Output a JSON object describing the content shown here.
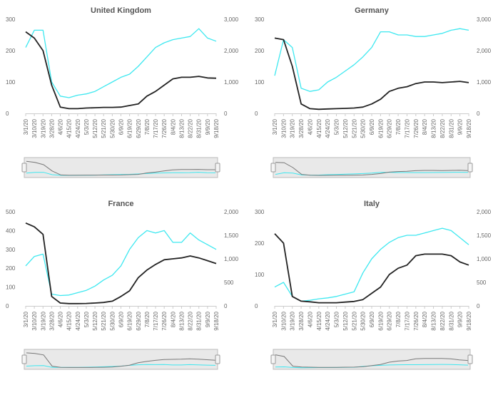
{
  "colors": {
    "cyan": "#3ee8f0",
    "black": "#222222",
    "navigator_bg": "#e9e9e9",
    "navigator_line": "#777777",
    "axis": "#cccccc",
    "text": "#666666"
  },
  "chart_data": [
    {
      "type": "line",
      "title": "United Kingdom",
      "x": [
        "3/1/20",
        "3/10/20",
        "3/19/20",
        "3/28/20",
        "4/6/20",
        "4/15/20",
        "4/24/20",
        "5/3/20",
        "5/12/20",
        "5/21/20",
        "5/30/20",
        "6/9/20",
        "6/19/20",
        "6/29/20",
        "7/8/20",
        "7/17/20",
        "7/26/20",
        "8/4/20",
        "8/13/20",
        "8/22/20",
        "8/31/20",
        "9/9/20",
        "9/18/20"
      ],
      "y_left_ticks": [
        "300",
        "200",
        "100",
        "0"
      ],
      "y_right_ticks": [
        "3,000",
        "2,000",
        "1,000",
        "0"
      ],
      "ylim_left": [
        0,
        300
      ],
      "ylim_right": [
        0,
        3000
      ],
      "grid": false,
      "series": [
        {
          "axis": "right",
          "color": "cyan",
          "values": [
            2100,
            2650,
            2650,
            1000,
            550,
            500,
            580,
            620,
            700,
            850,
            1000,
            1150,
            1250,
            1500,
            1800,
            2100,
            2250,
            2350,
            2400,
            2450,
            2700,
            2400,
            2300
          ]
        },
        {
          "axis": "left",
          "color": "black",
          "values": [
            260,
            240,
            200,
            90,
            20,
            15,
            15,
            17,
            18,
            19,
            19,
            20,
            25,
            30,
            55,
            70,
            90,
            110,
            115,
            115,
            118,
            113,
            112
          ]
        }
      ]
    },
    {
      "type": "line",
      "title": "Germany",
      "x": [
        "3/1/20",
        "3/10/20",
        "3/19/20",
        "3/28/20",
        "4/6/20",
        "4/15/20",
        "4/24/20",
        "5/3/20",
        "5/12/20",
        "5/21/20",
        "5/30/20",
        "6/9/20",
        "6/19/20",
        "6/29/20",
        "7/8/20",
        "7/17/20",
        "7/26/20",
        "8/4/20",
        "8/13/20",
        "8/22/20",
        "8/31/20",
        "9/9/20",
        "9/18/20"
      ],
      "y_left_ticks": [
        "300",
        "200",
        "100",
        "0"
      ],
      "y_right_ticks": [
        "3,000",
        "2,000",
        "1,000",
        "0"
      ],
      "ylim_left": [
        0,
        300
      ],
      "ylim_right": [
        0,
        3000
      ],
      "grid": false,
      "series": [
        {
          "axis": "right",
          "color": "cyan",
          "values": [
            1200,
            2350,
            2100,
            800,
            700,
            750,
            1000,
            1150,
            1350,
            1550,
            1800,
            2100,
            2600,
            2600,
            2500,
            2500,
            2450,
            2450,
            2500,
            2550,
            2650,
            2700,
            2650
          ]
        },
        {
          "axis": "left",
          "color": "black",
          "values": [
            240,
            235,
            150,
            30,
            15,
            13,
            14,
            15,
            16,
            17,
            20,
            30,
            45,
            70,
            80,
            85,
            95,
            100,
            100,
            98,
            100,
            102,
            98
          ]
        }
      ]
    },
    {
      "type": "line",
      "title": "France",
      "x": [
        "3/1/20",
        "3/10/20",
        "3/19/20",
        "3/28/20",
        "4/6/20",
        "4/15/20",
        "4/24/20",
        "5/3/20",
        "5/12/20",
        "5/21/20",
        "5/30/20",
        "6/9/20",
        "6/19/20",
        "6/29/20",
        "7/8/20",
        "7/17/20",
        "7/26/20",
        "8/4/20",
        "8/13/20",
        "8/22/20",
        "8/31/20",
        "9/9/20",
        "9/18/20"
      ],
      "y_left_ticks": [
        "500",
        "400",
        "300",
        "200",
        "100",
        "0"
      ],
      "y_right_ticks": [
        "2,000",
        "1,500",
        "1,000",
        "500",
        "0"
      ],
      "ylim_left": [
        0,
        500
      ],
      "ylim_right": [
        0,
        2000
      ],
      "grid": false,
      "series": [
        {
          "axis": "right",
          "color": "cyan",
          "values": [
            850,
            1050,
            1100,
            250,
            220,
            230,
            280,
            330,
            420,
            550,
            650,
            850,
            1200,
            1450,
            1600,
            1550,
            1600,
            1350,
            1350,
            1550,
            1400,
            1300,
            1200
          ]
        },
        {
          "axis": "left",
          "color": "black",
          "values": [
            440,
            420,
            380,
            50,
            15,
            12,
            12,
            13,
            15,
            18,
            25,
            50,
            80,
            150,
            190,
            220,
            245,
            250,
            255,
            265,
            255,
            240,
            225
          ]
        }
      ]
    },
    {
      "type": "line",
      "title": "Italy",
      "x": [
        "3/1/20",
        "3/10/20",
        "3/19/20",
        "3/28/20",
        "4/6/20",
        "4/15/20",
        "4/24/20",
        "5/3/20",
        "5/12/20",
        "5/21/20",
        "5/30/20",
        "6/9/20",
        "6/19/20",
        "6/29/20",
        "7/8/20",
        "7/17/20",
        "7/26/20",
        "8/4/20",
        "8/13/20",
        "8/22/20",
        "8/31/20",
        "9/9/20",
        "9/18/20"
      ],
      "y_left_ticks": [
        "300",
        "200",
        "100",
        "0"
      ],
      "y_right_ticks": [
        "2,000",
        "1,500",
        "1,000",
        "500",
        "0"
      ],
      "ylim_left": [
        0,
        300
      ],
      "ylim_right": [
        0,
        2000
      ],
      "grid": false,
      "series": [
        {
          "axis": "right",
          "color": "cyan",
          "values": [
            400,
            500,
            200,
            100,
            120,
            150,
            170,
            200,
            250,
            300,
            700,
            1000,
            1200,
            1350,
            1450,
            1500,
            1500,
            1550,
            1600,
            1650,
            1600,
            1450,
            1300
          ]
        },
        {
          "axis": "left",
          "color": "black",
          "values": [
            230,
            200,
            30,
            15,
            13,
            10,
            10,
            10,
            12,
            14,
            20,
            40,
            60,
            100,
            120,
            130,
            160,
            165,
            165,
            165,
            160,
            140,
            130
          ]
        }
      ]
    }
  ]
}
